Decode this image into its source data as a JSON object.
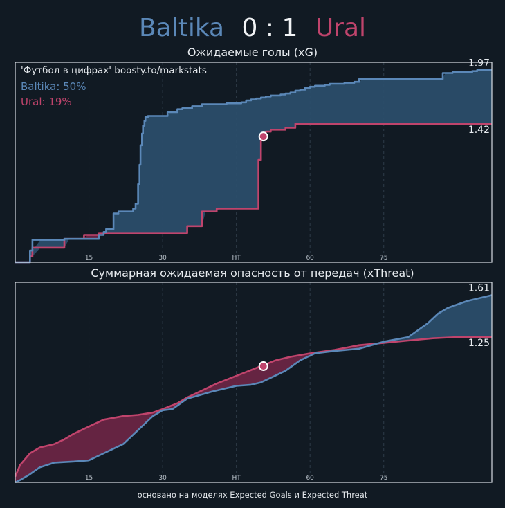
{
  "header": {
    "home_team": "Baltika",
    "score": "0 : 1",
    "away_team": "Ural"
  },
  "footer": "основано на моделях Expected Goals и Expected Threat",
  "colors": {
    "background": "#111a23",
    "home": "#5b88b8",
    "away": "#c0446c",
    "home_fill": "#2b4d6a",
    "away_fill": "#6a2544",
    "frame": "#d8dde2",
    "grid": "#2e3b48",
    "text": "#e9edf1"
  },
  "chart_data": [
    {
      "type": "area",
      "title": "Ожидаемые голы (xG)",
      "annotations": {
        "source": "'Футбол в цифрах' boosty.to/markstats",
        "home_prob": "Baltika: 50%",
        "away_prob": "Ural: 19%"
      },
      "xlim": [
        0,
        97
      ],
      "ylim": [
        0,
        2.05
      ],
      "x_ticks": [
        15,
        30,
        45,
        60,
        75
      ],
      "x_tick_labels": [
        "15",
        "30",
        "HT",
        "60",
        "75"
      ],
      "grid": "vertical",
      "step": true,
      "end_labels": {
        "home": "1.97",
        "away": "1.42"
      },
      "goal_marker": {
        "x": 50.5,
        "y": 1.29
      },
      "series": [
        {
          "name": "Baltika",
          "x": [
            0,
            3,
            3.5,
            10,
            17,
            18,
            18.5,
            20,
            21,
            24,
            24.5,
            25,
            25.3,
            25.5,
            25.8,
            26,
            26.3,
            26.5,
            27,
            29,
            31,
            33,
            34,
            36,
            38,
            41,
            43,
            45,
            46,
            47,
            48,
            49,
            50,
            51,
            52,
            53,
            54,
            55,
            56,
            57,
            58,
            59,
            60,
            61,
            62,
            63,
            64,
            66,
            67,
            69,
            70,
            73,
            75,
            80,
            85,
            87,
            89,
            92,
            93,
            94,
            97
          ],
          "y": [
            0,
            0.12,
            0.23,
            0.24,
            0.28,
            0.31,
            0.34,
            0.5,
            0.52,
            0.55,
            0.6,
            0.8,
            1.0,
            1.2,
            1.32,
            1.4,
            1.45,
            1.49,
            1.5,
            1.5,
            1.54,
            1.57,
            1.58,
            1.6,
            1.62,
            1.62,
            1.63,
            1.63,
            1.64,
            1.66,
            1.67,
            1.68,
            1.69,
            1.7,
            1.71,
            1.71,
            1.72,
            1.73,
            1.74,
            1.76,
            1.77,
            1.79,
            1.8,
            1.81,
            1.81,
            1.82,
            1.83,
            1.83,
            1.84,
            1.85,
            1.88,
            1.88,
            1.88,
            1.88,
            1.88,
            1.94,
            1.95,
            1.95,
            1.96,
            1.97,
            1.97
          ]
        },
        {
          "name": "Ural",
          "x": [
            0,
            3,
            3.5,
            10,
            14,
            17,
            18,
            33,
            35,
            38,
            41,
            45,
            46,
            47,
            48,
            49,
            49.5,
            50,
            50.3,
            51,
            52,
            53,
            55,
            57,
            97
          ],
          "y": [
            0,
            0.06,
            0.15,
            0.24,
            0.28,
            0.3,
            0.3,
            0.3,
            0.37,
            0.52,
            0.55,
            0.55,
            0.55,
            0.55,
            0.55,
            0.55,
            1.05,
            1.29,
            1.29,
            1.34,
            1.36,
            1.36,
            1.38,
            1.42,
            1.42
          ]
        }
      ]
    },
    {
      "type": "area",
      "title": "Суммарная ожидаемая опасность от передач (xThreat)",
      "xlim": [
        0,
        97
      ],
      "ylim": [
        0,
        1.72
      ],
      "x_ticks": [
        15,
        30,
        45,
        60,
        75
      ],
      "x_tick_labels": [
        "15",
        "30",
        "HT",
        "60",
        "75"
      ],
      "grid": "vertical",
      "end_labels": {
        "home": "1.61",
        "away": "1.25"
      },
      "goal_marker": {
        "x": 50.5,
        "y": 1.0
      },
      "series": [
        {
          "name": "Baltika",
          "x": [
            0,
            1,
            3,
            5,
            8,
            12,
            15,
            18,
            22,
            25,
            28,
            30,
            32,
            35,
            40,
            45,
            48,
            50,
            52,
            55,
            58,
            61,
            65,
            70,
            75,
            80,
            84,
            86,
            88,
            90,
            92,
            94,
            97
          ],
          "y": [
            0.0,
            0.02,
            0.07,
            0.13,
            0.17,
            0.18,
            0.19,
            0.25,
            0.33,
            0.45,
            0.57,
            0.62,
            0.63,
            0.72,
            0.78,
            0.83,
            0.84,
            0.86,
            0.9,
            0.96,
            1.05,
            1.11,
            1.13,
            1.15,
            1.21,
            1.25,
            1.37,
            1.45,
            1.5,
            1.53,
            1.56,
            1.58,
            1.61
          ]
        },
        {
          "name": "Ural",
          "x": [
            0,
            1,
            3,
            5,
            8,
            10,
            12,
            15,
            18,
            22,
            25,
            28,
            30,
            33,
            35,
            38,
            41,
            44,
            47,
            50,
            53,
            56,
            60,
            65,
            70,
            75,
            80,
            85,
            90,
            97
          ],
          "y": [
            0.05,
            0.15,
            0.25,
            0.3,
            0.33,
            0.37,
            0.42,
            0.48,
            0.54,
            0.57,
            0.58,
            0.6,
            0.63,
            0.68,
            0.73,
            0.79,
            0.85,
            0.9,
            0.95,
            1.0,
            1.05,
            1.08,
            1.11,
            1.14,
            1.18,
            1.2,
            1.22,
            1.24,
            1.25,
            1.25
          ]
        }
      ]
    }
  ]
}
